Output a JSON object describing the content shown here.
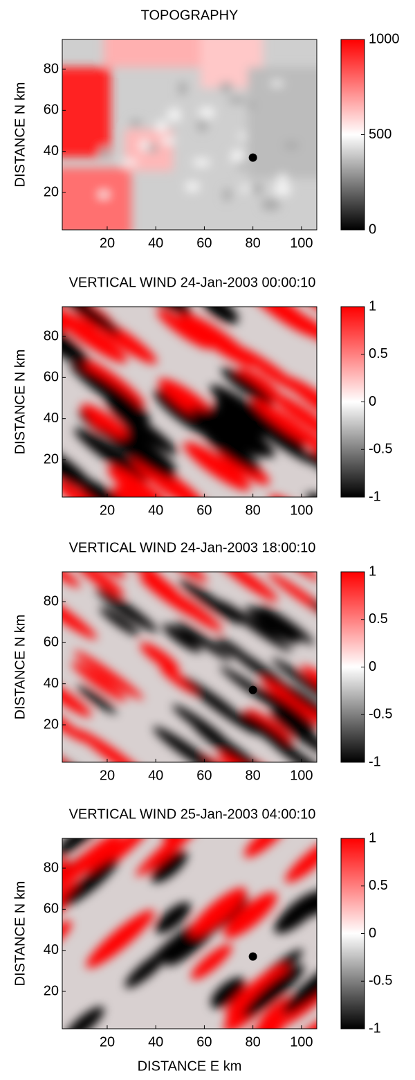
{
  "chart_data": [
    {
      "type": "heatmap",
      "title": "TOPOGRAPHY",
      "ylabel": "DISTANCE N  km",
      "xlim": [
        1.5,
        106.3
      ],
      "ylim": [
        1.8,
        94.5
      ],
      "xticks": [
        20,
        40,
        60,
        80,
        100
      ],
      "yticks": [
        20,
        40,
        60,
        80
      ],
      "clim": [
        0,
        1000
      ],
      "cticks": [
        0,
        500,
        1000
      ],
      "colormap": [
        "#000000",
        "#ffffff",
        "#ff0000"
      ],
      "marker": {
        "x": 80,
        "y": 37
      }
    },
    {
      "type": "heatmap",
      "title": "VERTICAL WIND 24-Jan-2003 00:00:10",
      "ylabel": "DISTANCE N  km",
      "xlim": [
        1.5,
        106.3
      ],
      "ylim": [
        1.8,
        94.5
      ],
      "xticks": [
        20,
        40,
        60,
        80,
        100
      ],
      "yticks": [
        20,
        40,
        60,
        80
      ],
      "clim": [
        -1,
        1
      ],
      "cticks": [
        -1,
        -0.5,
        0,
        0.5,
        1
      ],
      "colormap": [
        "#000000",
        "#ffffff",
        "#ff0000"
      ],
      "marker": {
        "x": 80,
        "y": 37
      }
    },
    {
      "type": "heatmap",
      "title": "VERTICAL WIND 24-Jan-2003 18:00:10",
      "ylabel": "DISTANCE N  km",
      "xlim": [
        1.5,
        106.3
      ],
      "ylim": [
        1.8,
        94.5
      ],
      "xticks": [
        20,
        40,
        60,
        80,
        100
      ],
      "yticks": [
        20,
        40,
        60,
        80
      ],
      "clim": [
        -1,
        1
      ],
      "cticks": [
        -1,
        -0.5,
        0,
        0.5,
        1
      ],
      "colormap": [
        "#000000",
        "#ffffff",
        "#ff0000"
      ],
      "marker": {
        "x": 80,
        "y": 37
      }
    },
    {
      "type": "heatmap",
      "title": "VERTICAL WIND 25-Jan-2003 04:00:10",
      "ylabel": "DISTANCE N  km",
      "xlabel": "DISTANCE E  km",
      "xlim": [
        1.5,
        106.3
      ],
      "ylim": [
        1.8,
        94.5
      ],
      "xticks": [
        20,
        40,
        60,
        80,
        100
      ],
      "yticks": [
        20,
        40,
        60,
        80
      ],
      "clim": [
        -1,
        1
      ],
      "cticks": [
        -1,
        -0.5,
        0,
        0.5,
        1
      ],
      "colormap": [
        "#000000",
        "#ffffff",
        "#ff0000"
      ],
      "marker": {
        "x": 80,
        "y": 37
      }
    }
  ]
}
